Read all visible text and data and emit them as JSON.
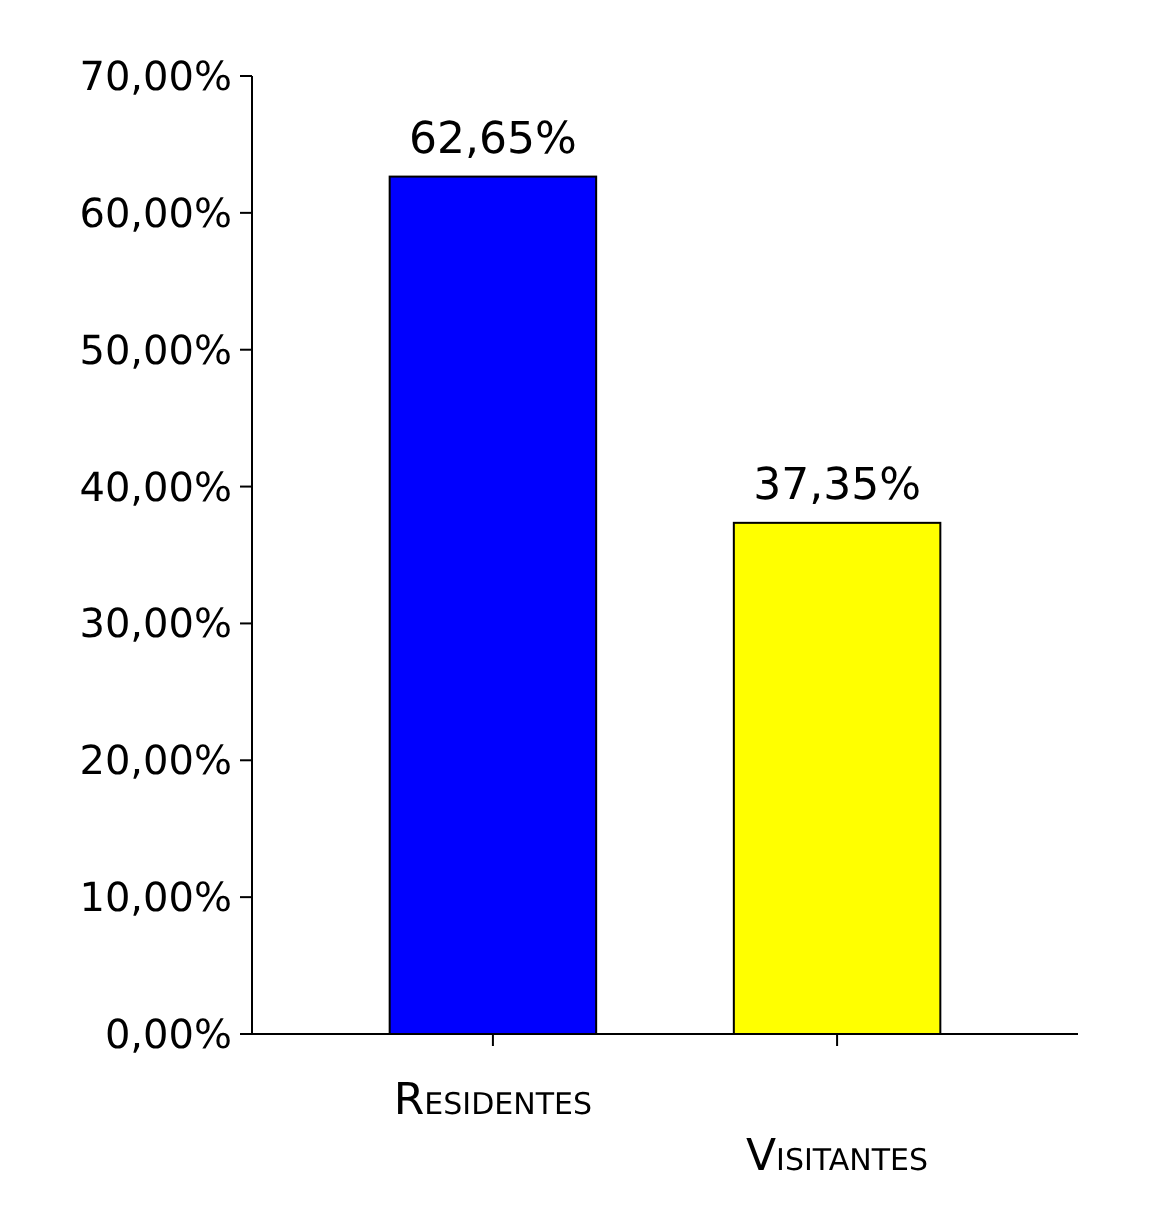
{
  "chart_data": {
    "type": "bar",
    "categories": [
      "Residentes",
      "Visitantes"
    ],
    "values": [
      62.65,
      37.35
    ],
    "colors": [
      "#0000ff",
      "#ffff00"
    ],
    "value_labels": [
      "62,65%",
      "37,35%"
    ],
    "ylim": [
      0,
      70
    ],
    "yticks": [
      {
        "value": 0,
        "label": "0,00%"
      },
      {
        "value": 10,
        "label": "10,00%"
      },
      {
        "value": 20,
        "label": "20,00%"
      },
      {
        "value": 30,
        "label": "30,00%"
      },
      {
        "value": 40,
        "label": "40,00%"
      },
      {
        "value": 50,
        "label": "50,00%"
      },
      {
        "value": 60,
        "label": "60,00%"
      },
      {
        "value": 70,
        "label": "70,00%"
      }
    ]
  }
}
